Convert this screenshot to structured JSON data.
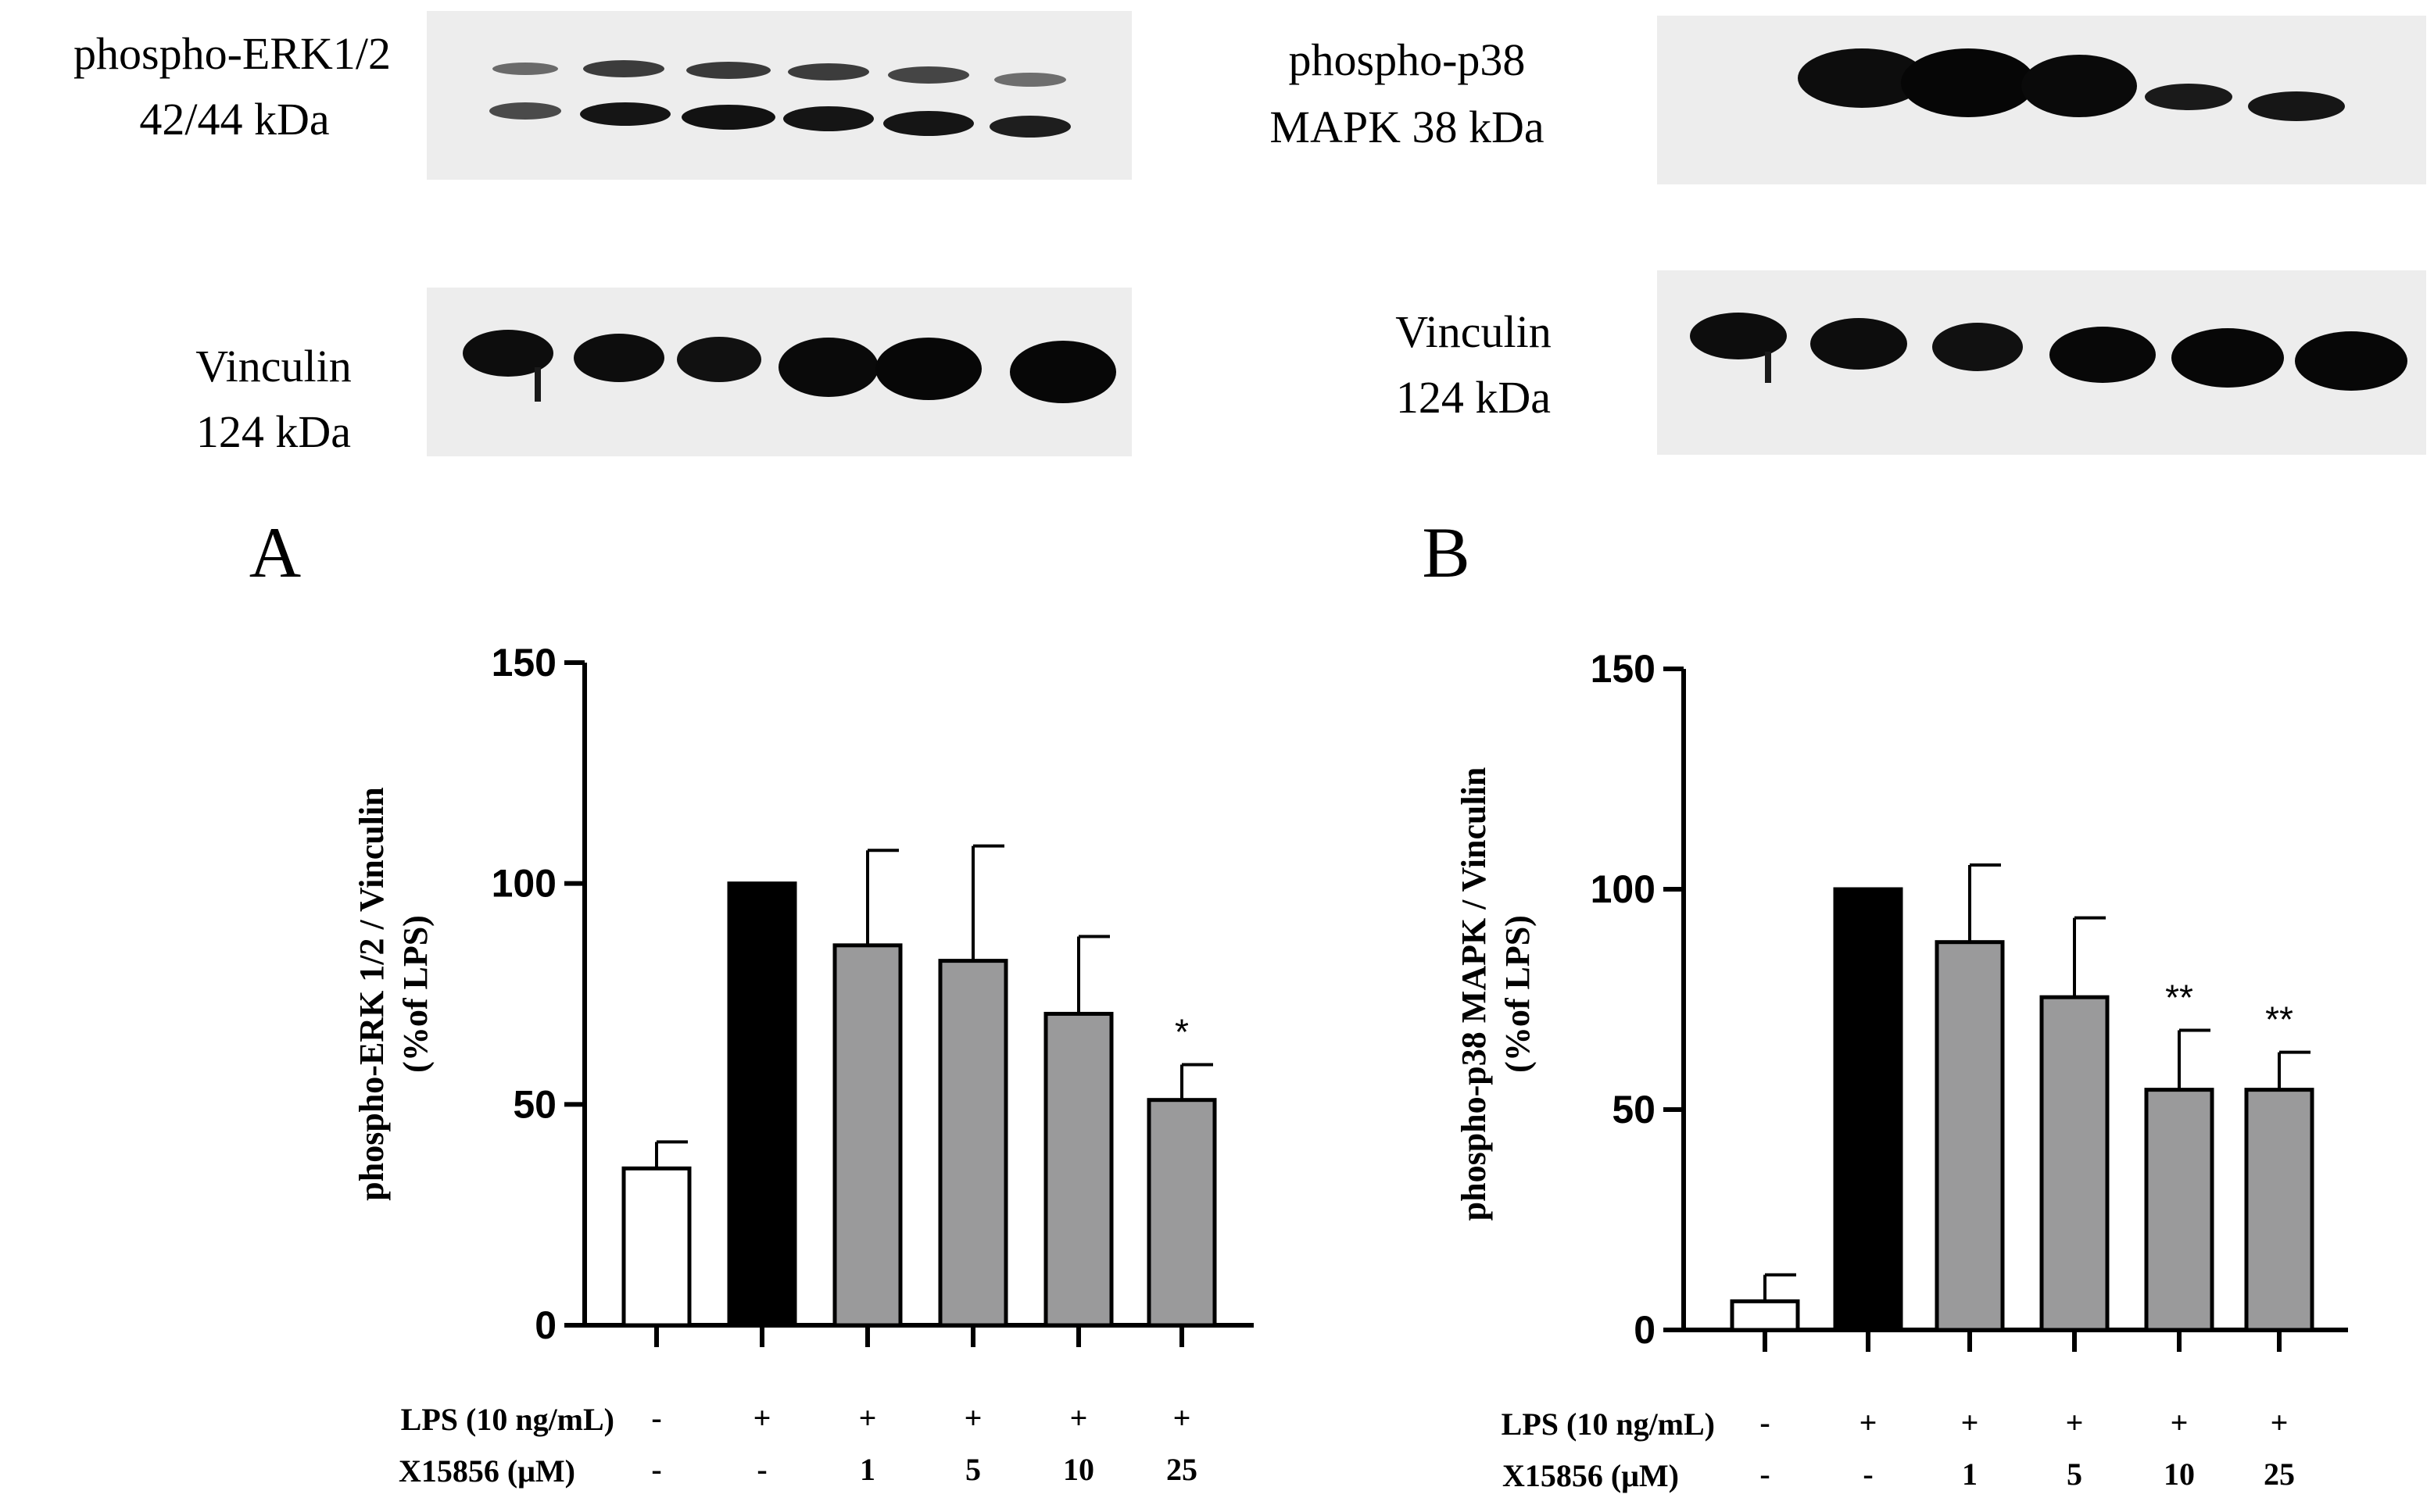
{
  "blots": {
    "A": {
      "target_label_line1": "phospho-ERK1/2",
      "target_label_line2": "42/44 kDa",
      "loading_label_line1": "Vinculin",
      "loading_label_line2": "124 kDa"
    },
    "B": {
      "target_label_line1": "phospho-p38",
      "target_label_line2": "MAPK 38 kDa",
      "loading_label_line1": "Vinculin",
      "loading_label_line2": "124 kDa"
    }
  },
  "treatments": {
    "lps_label": "LPS (10 ng/mL)",
    "x_label": "X15856 (μM)",
    "lps": [
      "-",
      "+",
      "+",
      "+",
      "+",
      "+"
    ],
    "x15856": [
      "-",
      "-",
      "1",
      "5",
      "10",
      "25"
    ]
  },
  "colors": {
    "control_bar": "#ffffff",
    "lps_bar": "#000000",
    "treated_bar": "#9a9a9b",
    "axis": "#000000"
  },
  "chart_data": [
    {
      "panel": "A",
      "type": "bar",
      "ylabel_line1": "phospho-ERK 1/2 / Vinculin",
      "ylabel_line2": "(%of LPS)",
      "ylim": [
        0,
        150
      ],
      "yticks": [
        0,
        50,
        100,
        150
      ],
      "values": [
        35.5,
        100,
        86,
        82.5,
        70.5,
        51
      ],
      "errors": [
        6,
        0,
        21.5,
        26,
        17.5,
        8
      ],
      "significance": [
        "",
        "",
        "",
        "",
        "",
        "*"
      ]
    },
    {
      "panel": "B",
      "type": "bar",
      "ylabel_line1": "phospho-p38 MAPK / Vinculin",
      "ylabel_line2": "(%of LPS)",
      "ylim": [
        0,
        150
      ],
      "yticks": [
        0,
        50,
        100,
        150
      ],
      "values": [
        6.5,
        100,
        88,
        75.5,
        54.5,
        54.5
      ],
      "errors": [
        6,
        0,
        17.5,
        18,
        13.5,
        8.5
      ],
      "significance": [
        "",
        "",
        "",
        "",
        "**",
        "**"
      ]
    }
  ]
}
